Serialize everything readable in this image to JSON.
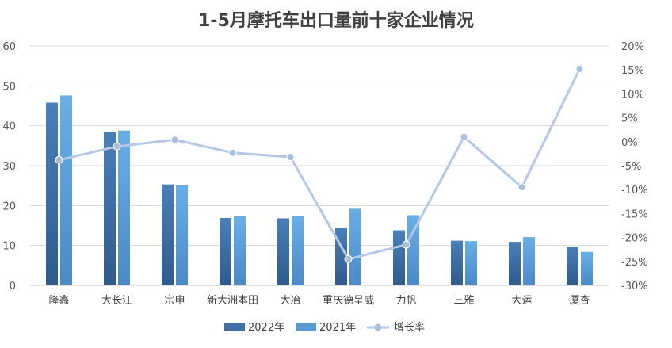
{
  "chart_data": {
    "type": "bar",
    "title": "1-5月摩托车出口量前十家企业情况",
    "categories": [
      "隆鑫",
      "大长江",
      "宗申",
      "新大洲本田",
      "大冶",
      "重庆德呈威",
      "力帆",
      "三雅",
      "大运",
      "厦杏"
    ],
    "series": [
      {
        "name": "2022年",
        "type": "bar",
        "axis": "left",
        "color": "#3f6fa6",
        "values": [
          45.8,
          38.5,
          25.3,
          16.9,
          16.8,
          14.5,
          13.8,
          11.2,
          10.9,
          9.6
        ]
      },
      {
        "name": "2021年",
        "type": "bar",
        "axis": "left",
        "color": "#5b9bd5",
        "values": [
          47.6,
          38.8,
          25.2,
          17.3,
          17.3,
          19.2,
          17.6,
          11.1,
          12.1,
          8.4
        ]
      },
      {
        "name": "增长率",
        "type": "line",
        "axis": "right",
        "color": "#b4c7e7",
        "values": [
          -3.8,
          -1.0,
          0.4,
          -2.3,
          -3.2,
          -24.5,
          -21.5,
          1.0,
          -9.5,
          15.2
        ]
      }
    ],
    "y_left": {
      "min": 0,
      "max": 60,
      "ticks": [
        "0",
        "10",
        "20",
        "30",
        "40",
        "50",
        "60"
      ]
    },
    "y_right": {
      "min": -30,
      "max": 20,
      "ticks": [
        "-30%",
        "-25%",
        "-20%",
        "-15%",
        "-10%",
        "-5%",
        "0%",
        "5%",
        "10%",
        "15%",
        "20%"
      ]
    },
    "grid": true,
    "legend_position": "bottom"
  }
}
